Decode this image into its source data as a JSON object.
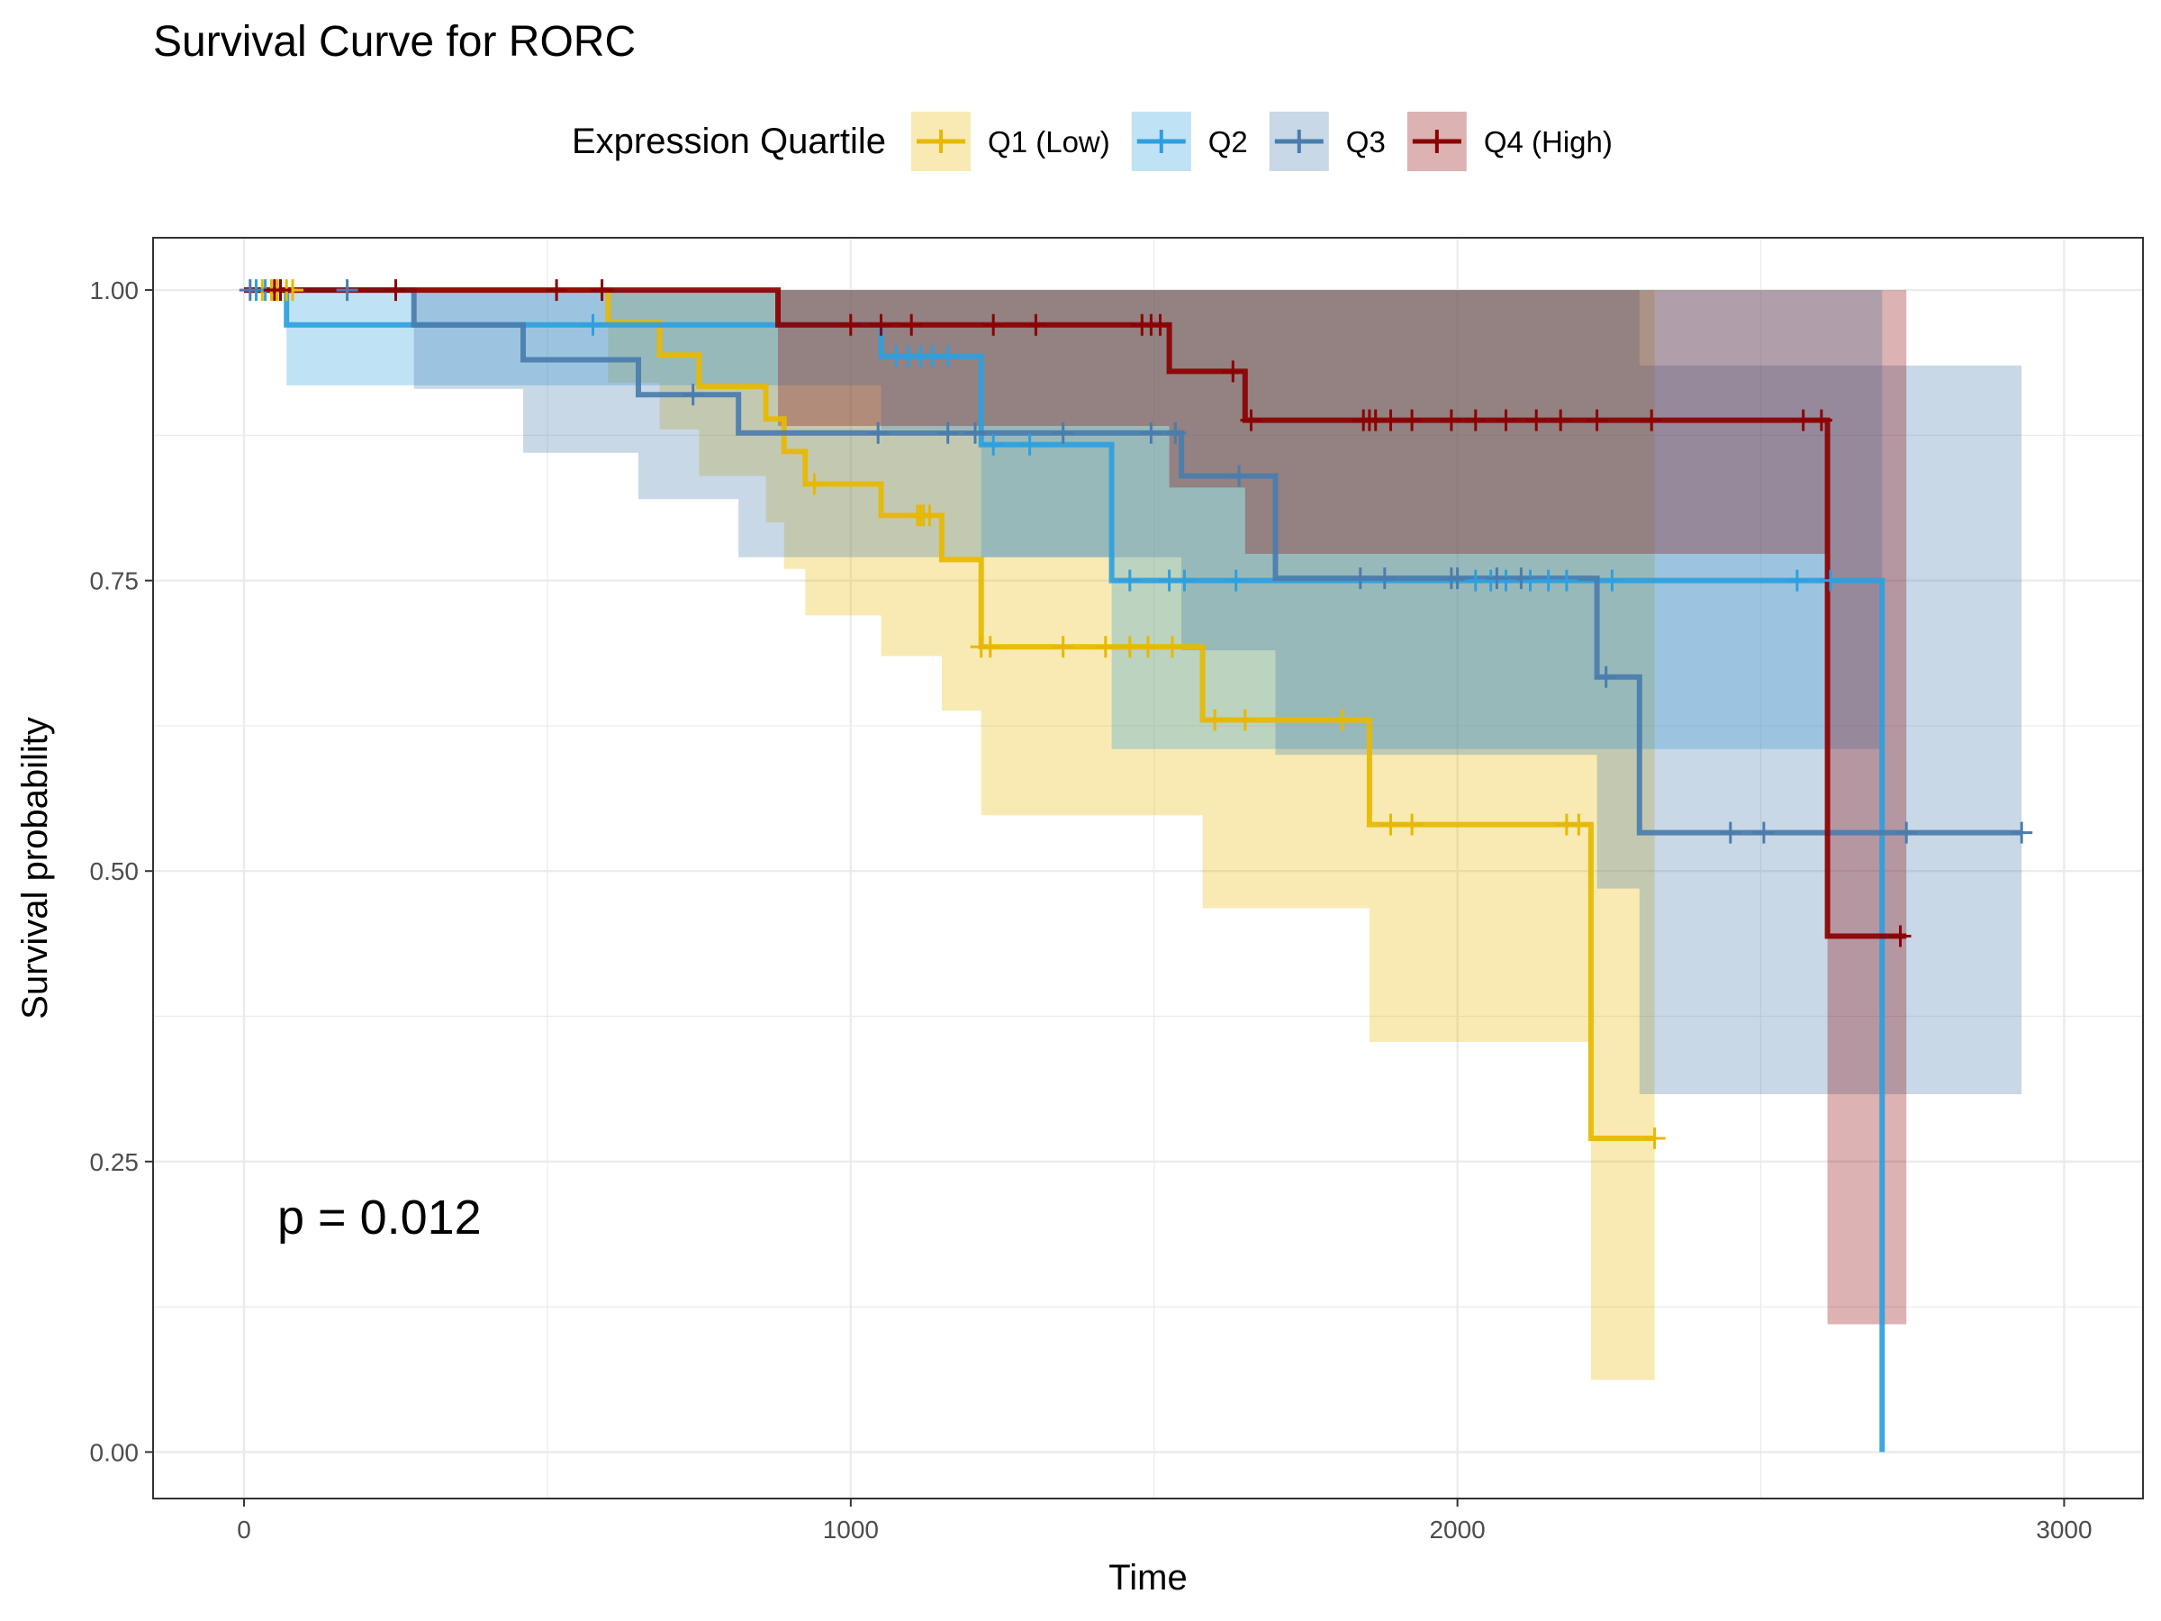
{
  "title": "Survival Curve for RORC",
  "legend": {
    "title": "Expression Quartile",
    "position": "top"
  },
  "annotation": {
    "p_value": "p = 0.012"
  },
  "chart_data": {
    "type": "line",
    "subtype": "kaplan-meier step curves with confidence bands and censor marks",
    "xlabel": "Time",
    "ylabel": "Survival probability",
    "xlim": [
      -150,
      3130
    ],
    "ylim": [
      -0.04,
      1.045
    ],
    "x_ticks": [
      0,
      1000,
      2000,
      3000
    ],
    "x_tick_labels": [
      "0",
      "1000",
      "2000",
      "3000"
    ],
    "y_ticks": [
      0,
      0.25,
      0.5,
      0.75,
      1.0
    ],
    "y_tick_labels": [
      "0.00",
      "0.25",
      "0.50",
      "0.75",
      "1.00"
    ],
    "grid": true,
    "series": [
      {
        "name": "Q1 (Low)",
        "color": "#E7B800",
        "band_opacity": 0.3,
        "steps": [
          [
            0,
            1.0
          ],
          [
            600,
            0.972
          ],
          [
            685,
            0.944
          ],
          [
            750,
            0.917
          ],
          [
            860,
            0.889
          ],
          [
            890,
            0.861
          ],
          [
            925,
            0.833
          ],
          [
            1050,
            0.806
          ],
          [
            1150,
            0.768
          ],
          [
            1215,
            0.693
          ],
          [
            1580,
            0.63
          ],
          [
            1855,
            0.54
          ],
          [
            2220,
            0.27
          ],
          [
            2325,
            0.27
          ]
        ],
        "lower": [
          [
            0,
            1.0
          ],
          [
            600,
            0.92
          ],
          [
            685,
            0.88
          ],
          [
            750,
            0.84
          ],
          [
            860,
            0.8
          ],
          [
            890,
            0.76
          ],
          [
            925,
            0.72
          ],
          [
            1050,
            0.685
          ],
          [
            1150,
            0.638
          ],
          [
            1215,
            0.548
          ],
          [
            1580,
            0.468
          ],
          [
            1855,
            0.353
          ],
          [
            2220,
            0.062
          ],
          [
            2325,
            0.062
          ]
        ],
        "upper": [
          [
            0,
            1.0
          ],
          [
            2325,
            1.0
          ]
        ],
        "censor_times": [
          30,
          45,
          55,
          70,
          80,
          940,
          1110,
          1115,
          1120,
          1130,
          1215,
          1230,
          1350,
          1420,
          1460,
          1490,
          1530,
          1600,
          1650,
          1810,
          1890,
          1925,
          2180,
          2200,
          2325
        ]
      },
      {
        "name": "Q2",
        "color": "#2E9FDF",
        "band_opacity": 0.3,
        "steps": [
          [
            0,
            1.0
          ],
          [
            70,
            0.97
          ],
          [
            1050,
            0.943
          ],
          [
            1215,
            0.867
          ],
          [
            1430,
            0.75
          ],
          [
            2700,
            0.0
          ]
        ],
        "lower": [
          [
            0,
            1.0
          ],
          [
            70,
            0.918
          ],
          [
            1050,
            0.88
          ],
          [
            1215,
            0.77
          ],
          [
            1430,
            0.605
          ],
          [
            2700,
            0.0
          ]
        ],
        "upper": [
          [
            0,
            1.0
          ],
          [
            2700,
            1.0
          ]
        ],
        "censor_times": [
          20,
          35,
          575,
          1075,
          1095,
          1115,
          1135,
          1160,
          1235,
          1295,
          1460,
          1525,
          1550,
          1635,
          2030,
          2055,
          2080,
          2120,
          2150,
          2180,
          2255,
          2560,
          2615
        ]
      },
      {
        "name": "Q3",
        "color": "#4A7DAE",
        "band_opacity": 0.3,
        "steps": [
          [
            0,
            1.0
          ],
          [
            280,
            0.97
          ],
          [
            460,
            0.94
          ],
          [
            650,
            0.91
          ],
          [
            815,
            0.877
          ],
          [
            1545,
            0.84
          ],
          [
            1700,
            0.752
          ],
          [
            2230,
            0.667
          ],
          [
            2300,
            0.533
          ],
          [
            2930,
            0.533
          ]
        ],
        "lower": [
          [
            0,
            1.0
          ],
          [
            280,
            0.915
          ],
          [
            460,
            0.86
          ],
          [
            650,
            0.82
          ],
          [
            815,
            0.77
          ],
          [
            1545,
            0.69
          ],
          [
            1700,
            0.6
          ],
          [
            2230,
            0.485
          ],
          [
            2300,
            0.308
          ],
          [
            2930,
            0.308
          ]
        ],
        "upper": [
          [
            0,
            1.0
          ],
          [
            880,
            1.0
          ],
          [
            2300,
            0.935
          ],
          [
            2930,
            0.92
          ]
        ],
        "censor_times": [
          10,
          170,
          740,
          1045,
          1160,
          1205,
          1350,
          1495,
          1535,
          1640,
          1840,
          1880,
          1990,
          2000,
          2065,
          2105,
          2245,
          2450,
          2505,
          2740,
          2930
        ]
      },
      {
        "name": "Q4 (High)",
        "color": "#8B0000",
        "band_opacity": 0.3,
        "steps": [
          [
            0,
            1.0
          ],
          [
            880,
            0.97
          ],
          [
            1525,
            0.93
          ],
          [
            1650,
            0.888
          ],
          [
            2610,
            0.444
          ],
          [
            2740,
            0.444
          ]
        ],
        "lower": [
          [
            0,
            1.0
          ],
          [
            880,
            0.883
          ],
          [
            1525,
            0.83
          ],
          [
            1650,
            0.773
          ],
          [
            2610,
            0.11
          ],
          [
            2740,
            0.11
          ]
        ],
        "upper": [
          [
            0,
            1.0
          ],
          [
            2740,
            1.0
          ]
        ],
        "censor_times": [
          50,
          60,
          250,
          515,
          590,
          1000,
          1050,
          1100,
          1235,
          1305,
          1480,
          1495,
          1510,
          1630,
          1660,
          1845,
          1855,
          1865,
          1890,
          1925,
          1990,
          2030,
          2080,
          2130,
          2170,
          2230,
          2320,
          2570,
          2600,
          2730
        ]
      }
    ]
  }
}
